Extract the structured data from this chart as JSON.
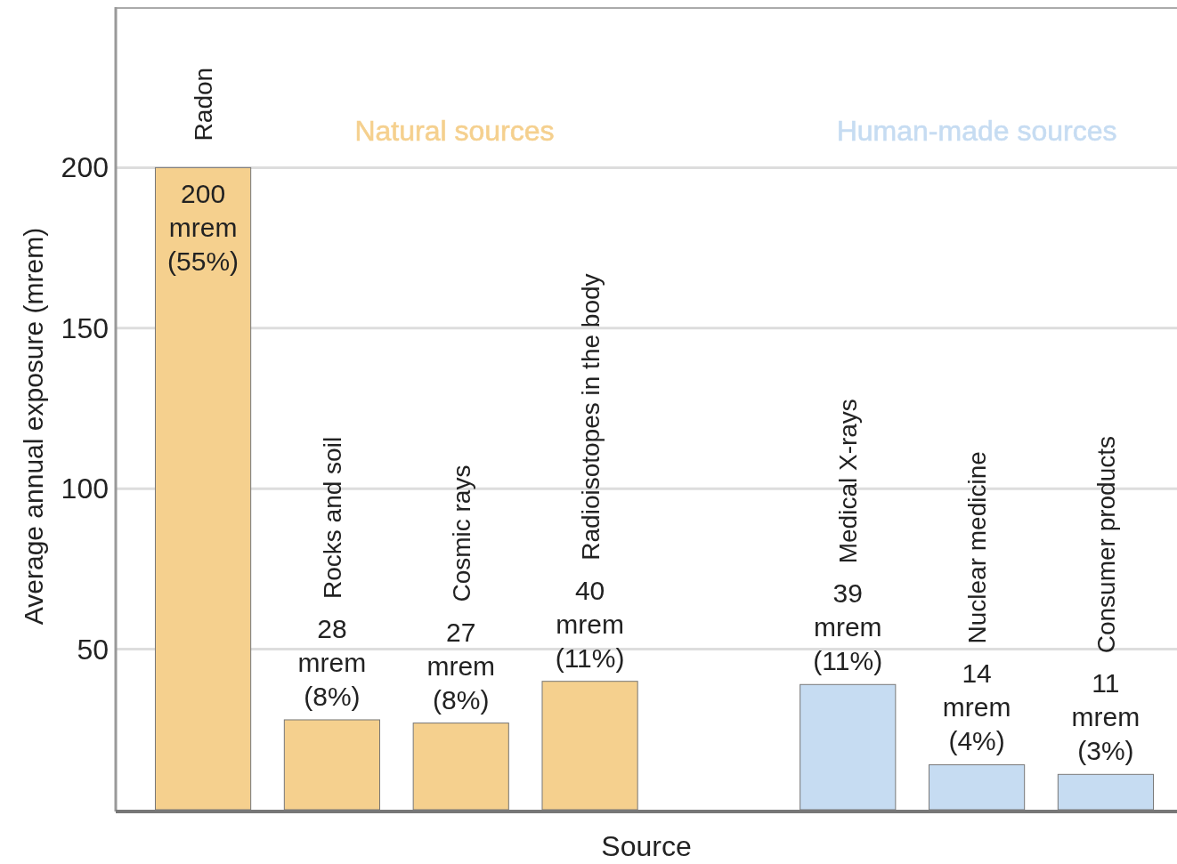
{
  "chart_data": {
    "type": "bar",
    "xlabel": "Source",
    "ylabel": "Average annual exposure (mrem)",
    "categories": [
      "Radon",
      "Rocks and soil",
      "Cosmic rays",
      "Radioisotopes in the body",
      null,
      "Medical X-rays",
      "Nuclear medicine",
      "Consumer products"
    ],
    "series": [
      {
        "name": "Natural sources",
        "color": "#f5d08e",
        "values": [
          200,
          28,
          27,
          40,
          null,
          null,
          null,
          null
        ],
        "value_labels": [
          "200 mrem (55%)",
          "28 mrem (8%)",
          "27 mrem (8%)",
          "40 mrem (11%)",
          null,
          null,
          null,
          null
        ]
      },
      {
        "name": "Human-made sources",
        "color": "#c6dcf2",
        "values": [
          null,
          null,
          null,
          null,
          null,
          39,
          14,
          11
        ],
        "value_labels": [
          null,
          null,
          null,
          null,
          null,
          "39 mrem (11%)",
          "14 mrem (4%)",
          "11 mrem (3%)"
        ]
      }
    ],
    "ylim": [
      0,
      250
    ],
    "yticks": [
      50,
      100,
      150,
      200
    ],
    "grid": "y"
  }
}
